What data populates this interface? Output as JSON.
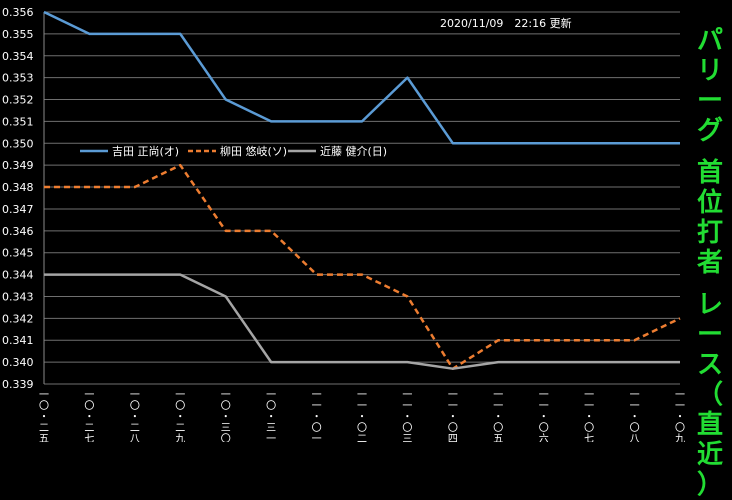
{
  "header": {
    "updated": "2020/11/09　22:16 更新"
  },
  "side_title": {
    "chars": [
      "パ",
      "リ",
      "ー",
      "グ",
      "",
      "首",
      "位",
      "打",
      "者",
      "",
      "レ",
      "ー",
      "ス",
      "（",
      "直",
      "近",
      "）"
    ]
  },
  "chart_data": {
    "type": "line",
    "title": "パリーグ 首位打者 レース（直近）",
    "categories": [
      "一〇・二五",
      "一〇・二七",
      "一〇・二八",
      "一〇・二九",
      "一〇・三〇",
      "一〇・三一",
      "一一・〇一",
      "一一・〇二",
      "一一・〇三",
      "一一・〇四",
      "一一・〇五",
      "一一・〇六",
      "一一・〇七",
      "一一・〇八",
      "一一・〇九"
    ],
    "ylim": [
      0.339,
      0.356
    ],
    "yticks": [
      "0.339",
      "0.340",
      "0.341",
      "0.342",
      "0.343",
      "0.344",
      "0.345",
      "0.346",
      "0.347",
      "0.348",
      "0.349",
      "0.350",
      "0.351",
      "0.352",
      "0.353",
      "0.354",
      "0.355",
      "0.356"
    ],
    "grid": true,
    "legend_position": "top-left",
    "series": [
      {
        "name": "吉田 正尚(オ)",
        "color": "#5b9bd5",
        "style": "solid",
        "values": [
          0.356,
          0.355,
          0.355,
          0.355,
          0.352,
          0.351,
          0.351,
          0.351,
          0.353,
          0.35,
          0.35,
          0.35,
          0.35,
          0.35,
          0.35
        ]
      },
      {
        "name": "柳田 悠岐(ソ)",
        "color": "#ed7d31",
        "style": "dashed",
        "values": [
          0.348,
          0.348,
          0.348,
          0.349,
          0.346,
          0.346,
          0.344,
          0.344,
          0.343,
          0.3397,
          0.341,
          0.341,
          0.341,
          0.341,
          0.342
        ]
      },
      {
        "name": "近藤 健介(日)",
        "color": "#a5a5a5",
        "style": "solid",
        "values": [
          0.344,
          0.344,
          0.344,
          0.344,
          0.343,
          0.34,
          0.34,
          0.34,
          0.34,
          0.3397,
          0.34,
          0.34,
          0.34,
          0.34,
          0.34
        ]
      }
    ]
  }
}
